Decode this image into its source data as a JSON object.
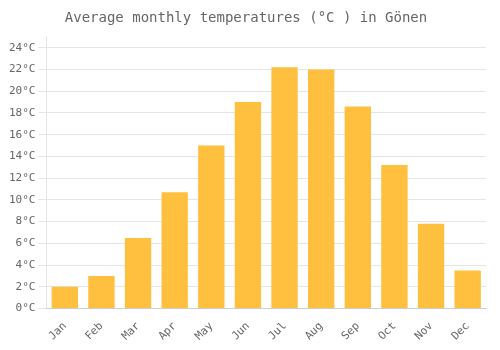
{
  "chart_data": {
    "type": "bar",
    "title": "Average monthly temperatures (°C ) in Gönen",
    "categories": [
      "Jan",
      "Feb",
      "Mar",
      "Apr",
      "May",
      "Jun",
      "Jul",
      "Aug",
      "Sep",
      "Oct",
      "Nov",
      "Dec"
    ],
    "values": [
      2.0,
      3.0,
      6.5,
      10.7,
      15.0,
      19.0,
      22.2,
      22.0,
      18.6,
      13.2,
      7.8,
      3.5
    ],
    "color": "#FFC040",
    "ylim": [
      0,
      25
    ],
    "yticks": [
      {
        "value": 0,
        "label": "0°C"
      },
      {
        "value": 2,
        "label": "2°C"
      },
      {
        "value": 4,
        "label": "4°C"
      },
      {
        "value": 6,
        "label": "6°C"
      },
      {
        "value": 8,
        "label": "8°C"
      },
      {
        "value": 10,
        "label": "10°C"
      },
      {
        "value": 12,
        "label": "12°C"
      },
      {
        "value": 14,
        "label": "14°C"
      },
      {
        "value": 16,
        "label": "16°C"
      },
      {
        "value": 18,
        "label": "18°C"
      },
      {
        "value": 20,
        "label": "20°C"
      },
      {
        "value": 22,
        "label": "22°C"
      },
      {
        "value": 24,
        "label": "24°C"
      }
    ],
    "grid": true
  }
}
